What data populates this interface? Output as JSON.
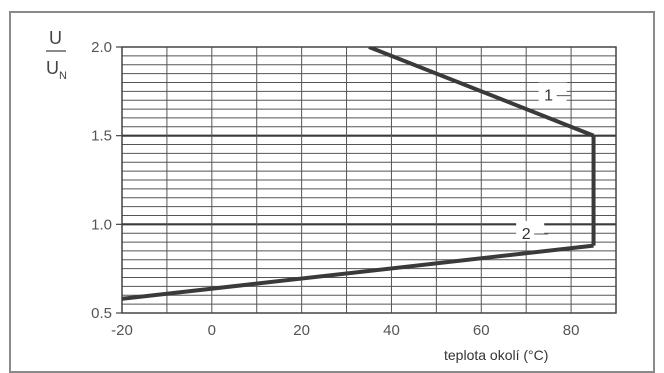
{
  "chart_data": {
    "type": "line",
    "ylabel_numerator": "U",
    "ylabel_denominator": "U",
    "ylabel_denominator_sub": "N",
    "xlabel": "teplota okolí  (°C)",
    "xlim": [
      -20,
      90
    ],
    "ylim": [
      0.5,
      2.0
    ],
    "x_ticks": [
      "-20",
      "0",
      "20",
      "40",
      "60",
      "80"
    ],
    "y_ticks": [
      "0.5",
      "1.0",
      "1.5",
      "2.0"
    ],
    "grid": true,
    "series": [
      {
        "name": "1",
        "x": [
          35,
          85
        ],
        "y": [
          2.0,
          1.5
        ]
      },
      {
        "name": "",
        "x": [
          85,
          85
        ],
        "y": [
          1.5,
          0.88
        ]
      },
      {
        "name": "2",
        "x": [
          -20,
          85
        ],
        "y": [
          0.58,
          0.88
        ]
      }
    ],
    "annotations": [
      {
        "text": "1",
        "x": 75,
        "y": 1.72
      },
      {
        "text": "2",
        "x": 70,
        "y": 0.94
      }
    ],
    "colors": {
      "line": "#3a3a3a",
      "grid": "#555555",
      "frame": "#888888"
    }
  }
}
